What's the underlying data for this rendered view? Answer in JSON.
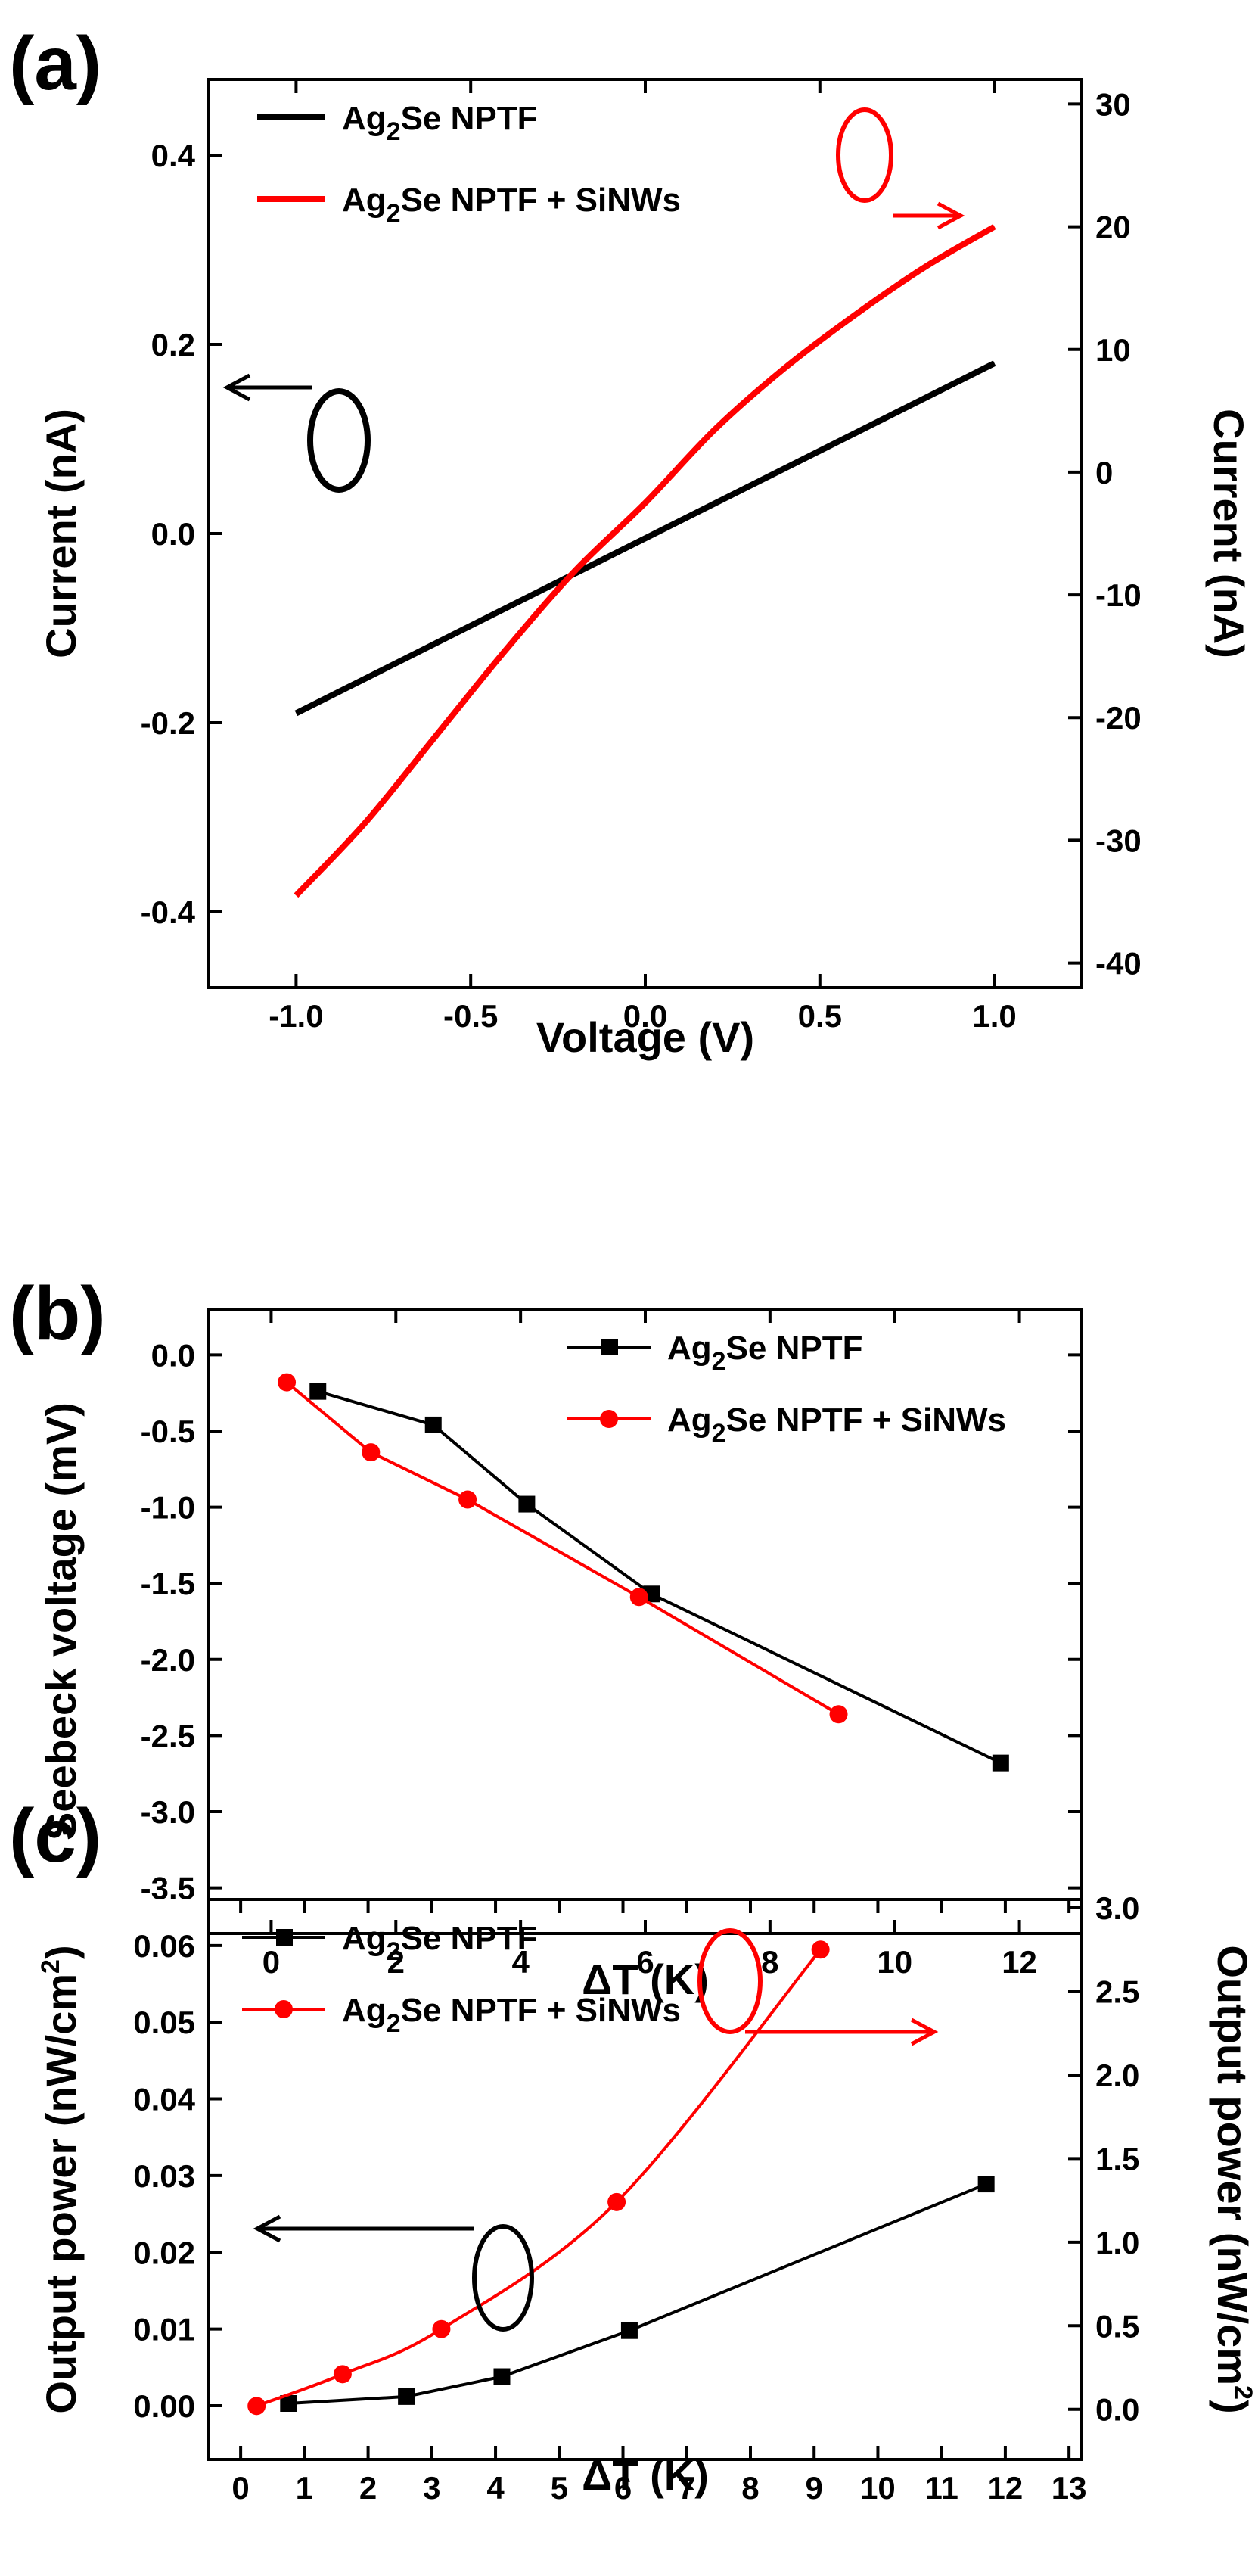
{
  "chart_data": [
    {
      "id": "a",
      "panel_label": "(a)",
      "type": "line",
      "xlabel": "Voltage (V)",
      "ylabel": "Current (nA)",
      "ylabel_right": "Current (nA)",
      "xlim": [
        -1.25,
        1.25
      ],
      "ylim": [
        -0.48,
        0.48
      ],
      "ylim_right": [
        -42,
        32
      ],
      "xticks": [
        -1.0,
        -0.5,
        0.0,
        0.5,
        1.0
      ],
      "xtick_labels": [
        "-1.0",
        "-0.5",
        "0.0",
        "0.5",
        "1.0"
      ],
      "yticks": [
        -0.4,
        -0.2,
        0.0,
        0.2,
        0.4
      ],
      "ytick_labels": [
        "-0.4",
        "-0.2",
        "0.0",
        "0.2",
        "0.4"
      ],
      "yticks_right": [
        -40,
        -30,
        -20,
        -10,
        0,
        10,
        20,
        30
      ],
      "ytick_labels_right": [
        "-40",
        "-30",
        "-20",
        "-10",
        "0",
        "10",
        "20",
        "30"
      ],
      "legend_position": "top-left",
      "series": [
        {
          "name": "Ag2Se NPTF",
          "legend_parts": [
            "Ag",
            "2",
            "Se NPTF"
          ],
          "color": "#000000",
          "axis": "left",
          "marker": "none",
          "x": [
            -1.0,
            1.0
          ],
          "y": [
            -0.19,
            0.18
          ]
        },
        {
          "name": "Ag2Se NPTF + SiNWs",
          "legend_parts": [
            "Ag",
            "2",
            "Se NPTF + SiNWs"
          ],
          "color": "#ff0000",
          "axis": "right",
          "marker": "none",
          "x": [
            -1.0,
            -0.8,
            -0.6,
            -0.4,
            -0.2,
            0.0,
            0.2,
            0.4,
            0.6,
            0.8,
            1.0
          ],
          "y": [
            -34.5,
            -28.5,
            -21.5,
            -14.5,
            -8.0,
            -2.5,
            3.5,
            8.5,
            12.8,
            16.7,
            20.0
          ]
        }
      ]
    },
    {
      "id": "b",
      "panel_label": "(b)",
      "type": "line",
      "xlabel": "ΔT (K)",
      "ylabel": "Seebeck voltage (mV)",
      "xlim": [
        -1.0,
        13.0
      ],
      "ylim": [
        -3.8,
        0.3
      ],
      "xticks": [
        0,
        2,
        4,
        6,
        8,
        10,
        12
      ],
      "xtick_labels": [
        "0",
        "2",
        "4",
        "6",
        "8",
        "10",
        "12"
      ],
      "yticks": [
        0.0,
        -0.5,
        -1.0,
        -1.5,
        -2.0,
        -2.5,
        -3.0,
        -3.5
      ],
      "ytick_labels": [
        "0.0",
        "-0.5",
        "-1.0",
        "-1.5",
        "-2.0",
        "-2.5",
        "-3.0",
        "-3.5"
      ],
      "legend_position": "top-right",
      "series": [
        {
          "name": "Ag2Se NPTF",
          "legend_parts": [
            "Ag",
            "2",
            "Se NPTF"
          ],
          "color": "#000000",
          "marker": "square",
          "x": [
            0.75,
            2.6,
            4.1,
            6.1,
            11.7
          ],
          "y": [
            -0.24,
            -0.46,
            -0.98,
            -1.57,
            -2.68
          ]
        },
        {
          "name": "Ag2Se NPTF + SiNWs",
          "legend_parts": [
            "Ag",
            "2",
            "Se NPTF + SiNWs"
          ],
          "color": "#ff0000",
          "marker": "circle",
          "x": [
            0.25,
            1.6,
            3.15,
            5.9,
            9.1
          ],
          "y": [
            -0.18,
            -0.64,
            -0.95,
            -1.59,
            -2.36
          ]
        }
      ]
    },
    {
      "id": "c",
      "panel_label": "(c)",
      "type": "line",
      "xlabel": "ΔT (K)",
      "ylabel_parts": [
        "Output power (nW/cm",
        "2",
        ")"
      ],
      "ylabel_right_parts": [
        "Output power (nW/cm",
        "2",
        ")"
      ],
      "xlim": [
        -0.5,
        13.2
      ],
      "ylim": [
        -0.007,
        0.066
      ],
      "ylim_right": [
        -0.3,
        3.05
      ],
      "xticks": [
        0,
        1,
        2,
        3,
        4,
        5,
        6,
        7,
        8,
        9,
        10,
        11,
        12,
        13
      ],
      "xtick_labels": [
        "0",
        "1",
        "2",
        "3",
        "4",
        "5",
        "6",
        "7",
        "8",
        "9",
        "10",
        "11",
        "12",
        "13"
      ],
      "yticks": [
        0.0,
        0.01,
        0.02,
        0.03,
        0.04,
        0.05,
        0.06
      ],
      "ytick_labels": [
        "0.00",
        "0.01",
        "0.02",
        "0.03",
        "0.04",
        "0.05",
        "0.06"
      ],
      "yticks_right": [
        0.0,
        0.5,
        1.0,
        1.5,
        2.0,
        2.5,
        3.0
      ],
      "ytick_labels_right": [
        "0.0",
        "0.5",
        "1.0",
        "1.5",
        "2.0",
        "2.5",
        "3.0"
      ],
      "legend_position": "top-left",
      "series": [
        {
          "name": "Ag2Se NPTF",
          "legend_parts": [
            "Ag",
            "2",
            "Se NPTF"
          ],
          "color": "#000000",
          "axis": "left",
          "marker": "square",
          "x": [
            0.75,
            2.6,
            4.1,
            6.1,
            11.7
          ],
          "y": [
            0.0003,
            0.0012,
            0.0038,
            0.0098,
            0.0289
          ]
        },
        {
          "name": "Ag2Se NPTF + SiNWs",
          "legend_parts": [
            "Ag",
            "2",
            "Se NPTF + SiNWs"
          ],
          "color": "#ff0000",
          "axis": "right",
          "marker": "circle",
          "x": [
            0.25,
            1.6,
            3.15,
            5.9,
            9.1
          ],
          "y": [
            0.02,
            0.21,
            0.48,
            1.24,
            2.75
          ]
        }
      ]
    }
  ]
}
